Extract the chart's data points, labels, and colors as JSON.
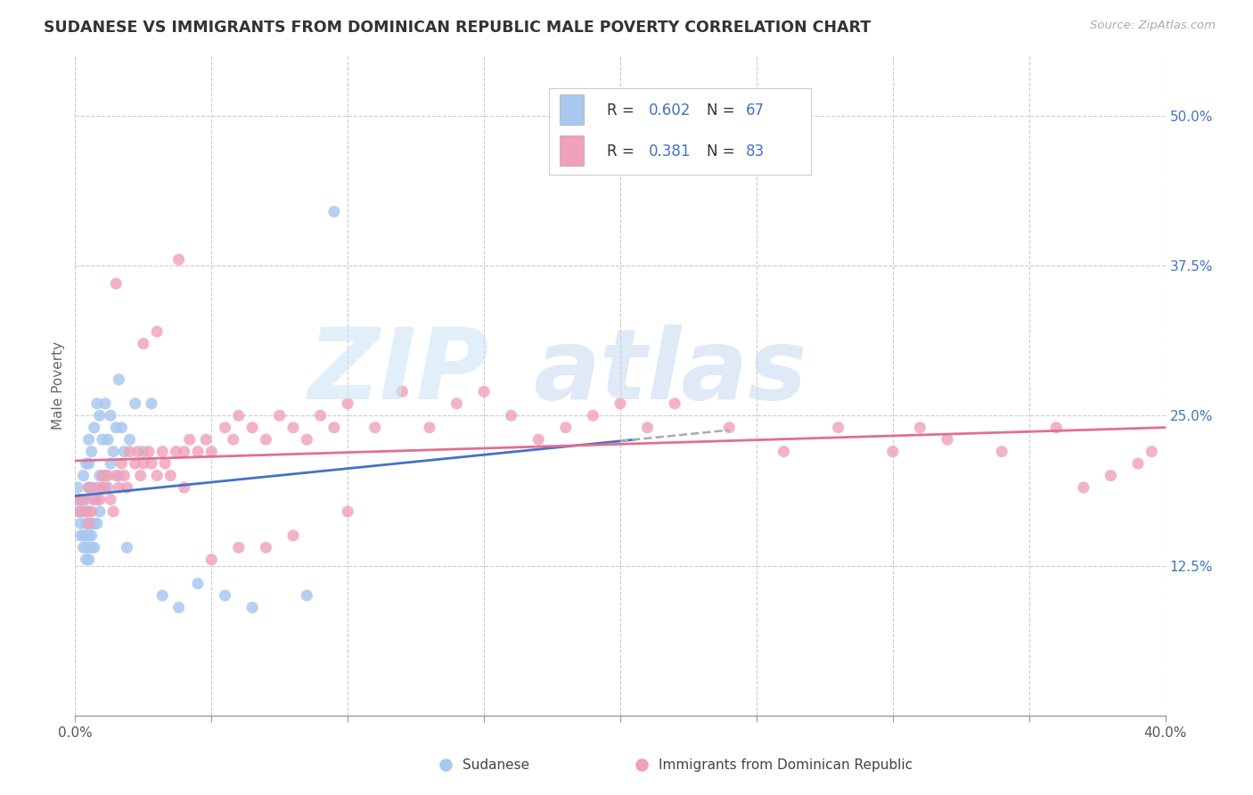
{
  "title": "SUDANESE VS IMMIGRANTS FROM DOMINICAN REPUBLIC MALE POVERTY CORRELATION CHART",
  "source": "Source: ZipAtlas.com",
  "ylabel": "Male Poverty",
  "ytick_labels": [
    "12.5%",
    "25.0%",
    "37.5%",
    "50.0%"
  ],
  "ytick_values": [
    0.125,
    0.25,
    0.375,
    0.5
  ],
  "xlim": [
    0.0,
    0.4
  ],
  "ylim": [
    0.0,
    0.55
  ],
  "legend_r1": "0.602",
  "legend_n1": "67",
  "legend_r2": "0.381",
  "legend_n2": "83",
  "color_sudanese": "#a8c8f0",
  "color_dominican": "#f0a0b8",
  "color_blue_text": "#4472c4",
  "color_pink_line": "#e07090",
  "background_color": "#ffffff",
  "sudanese_x": [
    0.001,
    0.001,
    0.001,
    0.002,
    0.002,
    0.002,
    0.002,
    0.003,
    0.003,
    0.003,
    0.003,
    0.003,
    0.004,
    0.004,
    0.004,
    0.004,
    0.004,
    0.004,
    0.005,
    0.005,
    0.005,
    0.005,
    0.005,
    0.005,
    0.005,
    0.005,
    0.006,
    0.006,
    0.006,
    0.006,
    0.006,
    0.007,
    0.007,
    0.007,
    0.007,
    0.008,
    0.008,
    0.008,
    0.009,
    0.009,
    0.009,
    0.01,
    0.01,
    0.011,
    0.011,
    0.012,
    0.012,
    0.013,
    0.013,
    0.014,
    0.015,
    0.016,
    0.016,
    0.017,
    0.018,
    0.019,
    0.02,
    0.022,
    0.025,
    0.028,
    0.032,
    0.038,
    0.045,
    0.055,
    0.065,
    0.085,
    0.095
  ],
  "sudanese_y": [
    0.17,
    0.18,
    0.19,
    0.15,
    0.16,
    0.17,
    0.18,
    0.14,
    0.15,
    0.17,
    0.18,
    0.2,
    0.13,
    0.14,
    0.15,
    0.16,
    0.18,
    0.21,
    0.13,
    0.14,
    0.15,
    0.16,
    0.17,
    0.19,
    0.21,
    0.23,
    0.14,
    0.15,
    0.16,
    0.19,
    0.22,
    0.14,
    0.16,
    0.18,
    0.24,
    0.16,
    0.18,
    0.26,
    0.17,
    0.2,
    0.25,
    0.19,
    0.23,
    0.2,
    0.26,
    0.19,
    0.23,
    0.21,
    0.25,
    0.22,
    0.24,
    0.2,
    0.28,
    0.24,
    0.22,
    0.14,
    0.23,
    0.26,
    0.22,
    0.26,
    0.1,
    0.09,
    0.11,
    0.1,
    0.09,
    0.1,
    0.42
  ],
  "dominican_x": [
    0.001,
    0.002,
    0.003,
    0.004,
    0.005,
    0.005,
    0.006,
    0.007,
    0.008,
    0.009,
    0.01,
    0.01,
    0.011,
    0.012,
    0.013,
    0.014,
    0.015,
    0.016,
    0.017,
    0.018,
    0.019,
    0.02,
    0.022,
    0.023,
    0.024,
    0.025,
    0.027,
    0.028,
    0.03,
    0.032,
    0.033,
    0.035,
    0.037,
    0.038,
    0.04,
    0.042,
    0.045,
    0.048,
    0.05,
    0.055,
    0.058,
    0.06,
    0.065,
    0.07,
    0.075,
    0.08,
    0.085,
    0.09,
    0.095,
    0.1,
    0.11,
    0.12,
    0.13,
    0.14,
    0.15,
    0.16,
    0.17,
    0.18,
    0.19,
    0.2,
    0.21,
    0.22,
    0.24,
    0.26,
    0.28,
    0.3,
    0.31,
    0.32,
    0.34,
    0.36,
    0.37,
    0.38,
    0.39,
    0.395,
    0.015,
    0.025,
    0.03,
    0.04,
    0.05,
    0.06,
    0.07,
    0.08,
    0.1
  ],
  "dominican_y": [
    0.18,
    0.17,
    0.18,
    0.17,
    0.16,
    0.19,
    0.17,
    0.18,
    0.19,
    0.18,
    0.19,
    0.2,
    0.19,
    0.2,
    0.18,
    0.17,
    0.2,
    0.19,
    0.21,
    0.2,
    0.19,
    0.22,
    0.21,
    0.22,
    0.2,
    0.21,
    0.22,
    0.21,
    0.2,
    0.22,
    0.21,
    0.2,
    0.22,
    0.38,
    0.22,
    0.23,
    0.22,
    0.23,
    0.22,
    0.24,
    0.23,
    0.25,
    0.24,
    0.23,
    0.25,
    0.24,
    0.23,
    0.25,
    0.24,
    0.26,
    0.24,
    0.27,
    0.24,
    0.26,
    0.27,
    0.25,
    0.23,
    0.24,
    0.25,
    0.26,
    0.24,
    0.26,
    0.24,
    0.22,
    0.24,
    0.22,
    0.24,
    0.23,
    0.22,
    0.24,
    0.19,
    0.2,
    0.21,
    0.22,
    0.36,
    0.31,
    0.32,
    0.19,
    0.13,
    0.14,
    0.14,
    0.15,
    0.17
  ]
}
